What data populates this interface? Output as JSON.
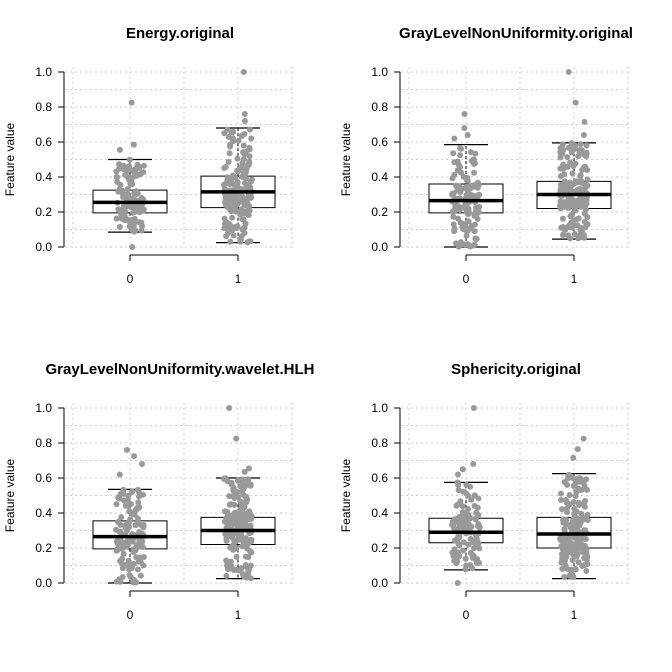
{
  "chart_data": [
    {
      "type": "box",
      "title": "Energy.original",
      "ylabel": "Feature value",
      "ylim": [
        0,
        1
      ],
      "yticks": [
        "0.0",
        "0.2",
        "0.4",
        "0.6",
        "0.8",
        "1.0"
      ],
      "categories": [
        "0",
        "1"
      ],
      "boxes": [
        {
          "category": "0",
          "whisker_low": 0.085,
          "q1": 0.195,
          "median": 0.255,
          "q3": 0.325,
          "whisker_high": 0.5
        },
        {
          "category": "1",
          "whisker_low": 0.025,
          "q1": 0.225,
          "median": 0.315,
          "q3": 0.405,
          "whisker_high": 0.68
        }
      ],
      "outliers": [
        {
          "category": "0",
          "values": [
            0.0,
            0.825,
            0.585,
            0.555
          ]
        },
        {
          "category": "1",
          "values": [
            1.0,
            0.76,
            0.72
          ]
        }
      ],
      "n_points": [
        120,
        180
      ]
    },
    {
      "type": "box",
      "title": "GrayLevelNonUniformity.original",
      "ylabel": "Feature value",
      "ylim": [
        0,
        1
      ],
      "yticks": [
        "0.0",
        "0.2",
        "0.4",
        "0.6",
        "0.8",
        "1.0"
      ],
      "categories": [
        "0",
        "1"
      ],
      "boxes": [
        {
          "category": "0",
          "whisker_low": 0.0,
          "q1": 0.195,
          "median": 0.265,
          "q3": 0.36,
          "whisker_high": 0.585
        },
        {
          "category": "1",
          "whisker_low": 0.045,
          "q1": 0.22,
          "median": 0.3,
          "q3": 0.375,
          "whisker_high": 0.595
        }
      ],
      "outliers": [
        {
          "category": "0",
          "values": [
            0.76,
            0.68,
            0.64,
            0.62
          ]
        },
        {
          "category": "1",
          "values": [
            1.0,
            0.825,
            0.715,
            0.64
          ]
        }
      ],
      "n_points": [
        120,
        180
      ]
    },
    {
      "type": "box",
      "title": "GrayLevelNonUniformity.wavelet.HLH",
      "ylabel": "Feature value",
      "ylim": [
        0,
        1
      ],
      "yticks": [
        "0.0",
        "0.2",
        "0.4",
        "0.6",
        "0.8",
        "1.0"
      ],
      "categories": [
        "0",
        "1"
      ],
      "boxes": [
        {
          "category": "0",
          "whisker_low": 0.0,
          "q1": 0.195,
          "median": 0.265,
          "q3": 0.355,
          "whisker_high": 0.535
        },
        {
          "category": "1",
          "whisker_low": 0.025,
          "q1": 0.22,
          "median": 0.3,
          "q3": 0.375,
          "whisker_high": 0.6
        }
      ],
      "outliers": [
        {
          "category": "0",
          "values": [
            0.76,
            0.725,
            0.68,
            0.62
          ]
        },
        {
          "category": "1",
          "values": [
            1.0,
            0.825,
            0.655,
            0.635
          ]
        }
      ],
      "n_points": [
        120,
        180
      ]
    },
    {
      "type": "box",
      "title": "Sphericity.original",
      "ylabel": "Feature value",
      "ylim": [
        0,
        1
      ],
      "yticks": [
        "0.0",
        "0.2",
        "0.4",
        "0.6",
        "0.8",
        "1.0"
      ],
      "categories": [
        "0",
        "1"
      ],
      "boxes": [
        {
          "category": "0",
          "whisker_low": 0.075,
          "q1": 0.23,
          "median": 0.29,
          "q3": 0.37,
          "whisker_high": 0.575
        },
        {
          "category": "1",
          "whisker_low": 0.025,
          "q1": 0.2,
          "median": 0.28,
          "q3": 0.375,
          "whisker_high": 0.625
        }
      ],
      "outliers": [
        {
          "category": "0",
          "values": [
            1.0,
            0.68,
            0.65,
            0.62,
            0.0
          ]
        },
        {
          "category": "1",
          "values": [
            0.825,
            0.765,
            0.715
          ]
        }
      ],
      "n_points": [
        120,
        180
      ]
    }
  ]
}
